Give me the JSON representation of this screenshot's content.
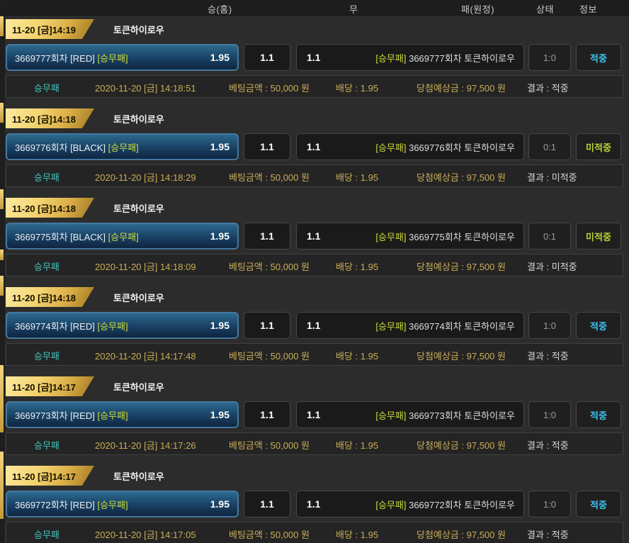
{
  "header": {
    "columns": {
      "home": "승(홈)",
      "draw": "무",
      "away": "패(원정)",
      "state": "상태",
      "info": "정보"
    }
  },
  "colors": {
    "win_text": "#3dc4f2",
    "miss_text": "#b8d433",
    "market_tag": "#cddc39",
    "gold_text": "#c9ad58",
    "teal_text": "#43c7c0",
    "ribbon_gold": "#f3d36e",
    "pick_box_border": "#44789f"
  },
  "bets": [
    {
      "ribbon": "11-20 [금]14:19",
      "title": "토큰하이로우",
      "pick_round": "3669777회차 [RED]",
      "pick_market": "[승무패]",
      "pick_odds": "1.95",
      "draw_odds": "1.1",
      "away_odds": "1.1",
      "away_market": "[승무패]",
      "away_text": "3669777회차 토큰하이로우",
      "score": "1:0",
      "result": "적중",
      "result_type": "win",
      "detail": {
        "market": "승무패",
        "datetime": "2020-11-20 [금] 14:18:51",
        "bet_amount": "베팅금액 : 50,000 원",
        "odds": "배당 : 1.95",
        "expected": "당첨예상금 : 97,500 원",
        "result": "결과 : 적중"
      }
    },
    {
      "ribbon": "11-20 [금]14:18",
      "title": "토큰하이로우",
      "pick_round": "3669776회차 [BLACK]",
      "pick_market": "[승무패]",
      "pick_odds": "1.95",
      "draw_odds": "1.1",
      "away_odds": "1.1",
      "away_market": "[승무패]",
      "away_text": "3669776회차 토큰하이로우",
      "score": "0:1",
      "result": "미적중",
      "result_type": "miss",
      "detail": {
        "market": "승무패",
        "datetime": "2020-11-20 [금] 14:18:29",
        "bet_amount": "베팅금액 : 50,000 원",
        "odds": "배당 : 1.95",
        "expected": "당첨예상금 : 97,500 원",
        "result": "결과 : 미적중"
      }
    },
    {
      "ribbon": "11-20 [금]14:18",
      "title": "토큰하이로우",
      "pick_round": "3669775회차 [BLACK]",
      "pick_market": "[승무패]",
      "pick_odds": "1.95",
      "draw_odds": "1.1",
      "away_odds": "1.1",
      "away_market": "[승무패]",
      "away_text": "3669775회차 토큰하이로우",
      "score": "0:1",
      "result": "미적중",
      "result_type": "miss",
      "detail": {
        "market": "승무패",
        "datetime": "2020-11-20 [금] 14:18:09",
        "bet_amount": "베팅금액 : 50,000 원",
        "odds": "배당 : 1.95",
        "expected": "당첨예상금 : 97,500 원",
        "result": "결과 : 미적중"
      }
    },
    {
      "ribbon": "11-20 [금]14:18",
      "title": "토큰하이로우",
      "pick_round": "3669774회차 [RED]",
      "pick_market": "[승무패]",
      "pick_odds": "1.95",
      "draw_odds": "1.1",
      "away_odds": "1.1",
      "away_market": "[승무패]",
      "away_text": "3669774회차 토큰하이로우",
      "score": "1:0",
      "result": "적중",
      "result_type": "win",
      "detail": {
        "market": "승무패",
        "datetime": "2020-11-20 [금] 14:17:48",
        "bet_amount": "베팅금액 : 50,000 원",
        "odds": "배당 : 1.95",
        "expected": "당첨예상금 : 97,500 원",
        "result": "결과 : 적중"
      }
    },
    {
      "ribbon": "11-20 [금]14:17",
      "title": "토큰하이로우",
      "pick_round": "3669773회차 [RED]",
      "pick_market": "[승무패]",
      "pick_odds": "1.95",
      "draw_odds": "1.1",
      "away_odds": "1.1",
      "away_market": "[승무패]",
      "away_text": "3669773회차 토큰하이로우",
      "score": "1:0",
      "result": "적중",
      "result_type": "win",
      "detail": {
        "market": "승무패",
        "datetime": "2020-11-20 [금] 14:17:26",
        "bet_amount": "베팅금액 : 50,000 원",
        "odds": "배당 : 1.95",
        "expected": "당첨예상금 : 97,500 원",
        "result": "결과 : 적중"
      }
    },
    {
      "ribbon": "11-20 [금]14:17",
      "title": "토큰하이로우",
      "pick_round": "3669772회차 [RED]",
      "pick_market": "[승무패]",
      "pick_odds": "1.95",
      "draw_odds": "1.1",
      "away_odds": "1.1",
      "away_market": "[승무패]",
      "away_text": "3669772회차 토큰하이로우",
      "score": "1:0",
      "result": "적중",
      "result_type": "win",
      "detail": {
        "market": "승무패",
        "datetime": "2020-11-20 [금] 14:17:05",
        "bet_amount": "베팅금액 : 50,000 원",
        "odds": "배당 : 1.95",
        "expected": "당첨예상금 : 97,500 원",
        "result": "결과 : 적중"
      }
    }
  ]
}
